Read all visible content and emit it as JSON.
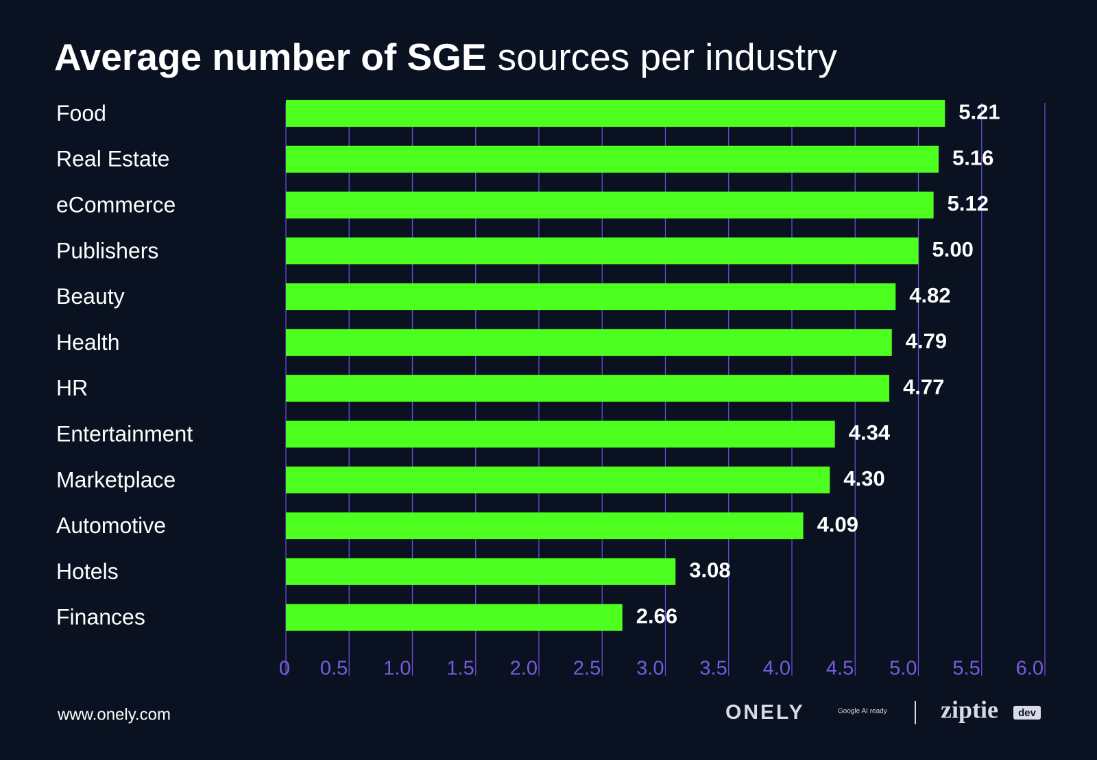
{
  "chart_data": {
    "type": "bar",
    "orientation": "horizontal",
    "title_parts": [
      "Average number of SGE",
      "sources per industry"
    ],
    "categories": [
      "Food",
      "Real Estate",
      "eCommerce",
      "Publishers",
      "Beauty",
      "Health",
      "HR",
      "Entertainment",
      "Marketplace",
      "Automotive",
      "Hotels",
      "Finances"
    ],
    "values": [
      5.21,
      5.16,
      5.12,
      5.0,
      4.82,
      4.79,
      4.77,
      4.34,
      4.3,
      4.09,
      3.08,
      2.66
    ],
    "value_labels": [
      "5.21",
      "5.16",
      "5.12",
      "5.00",
      "4.82",
      "4.79",
      "4.77",
      "4.34",
      "4.30",
      "4.09",
      "3.08",
      "2.66"
    ],
    "color": "#4cff1e",
    "xlim": [
      0,
      6
    ],
    "xticks": [
      0,
      0.5,
      {
        "value": 1,
        "label": "1.0"
      },
      1.5,
      {
        "value": 2,
        "label": "2.0"
      },
      2.5,
      {
        "value": 3,
        "label": "3.0"
      },
      3.5,
      {
        "value": 4,
        "label": "4.0"
      },
      4.5,
      {
        "value": 5,
        "label": "5.0"
      },
      5.5,
      {
        "value": 6,
        "label": "6.0"
      }
    ],
    "grid": true
  },
  "footer": {
    "url": "www.onely.com",
    "logo_left": "ONELY",
    "logo_left_tag": "Google AI ready",
    "logo_right": "ziptie",
    "logo_right_tag": "dev"
  }
}
